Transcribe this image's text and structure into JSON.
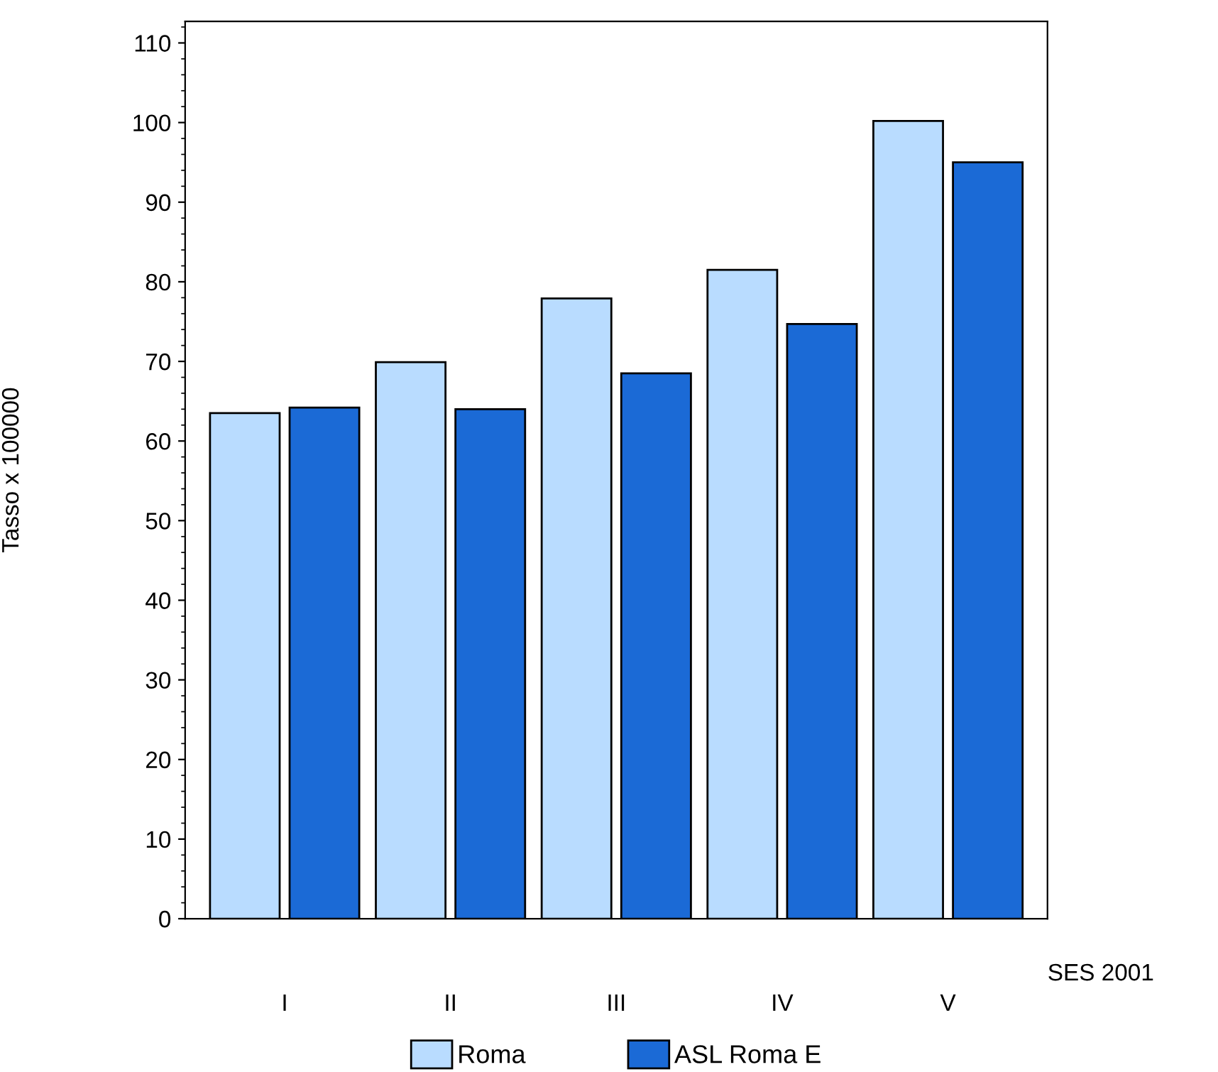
{
  "chart_data": {
    "type": "bar",
    "ylabel": "Tasso x 100000",
    "xlabel": "SES 2001",
    "categories": [
      "I",
      "II",
      "III",
      "IV",
      "V"
    ],
    "series": [
      {
        "name": "Roma",
        "color": "#b9dcff",
        "values": [
          63.5,
          69.9,
          77.9,
          81.5,
          100.2
        ]
      },
      {
        "name": "ASL Roma E",
        "color": "#1b6ad6",
        "values": [
          64.2,
          64.0,
          68.5,
          74.7,
          95.0
        ]
      }
    ],
    "ylim": [
      0,
      112.7
    ],
    "yticks": [
      0,
      10,
      20,
      30,
      40,
      50,
      60,
      70,
      80,
      90,
      100,
      110
    ],
    "legend": "bottom",
    "grid": false
  }
}
